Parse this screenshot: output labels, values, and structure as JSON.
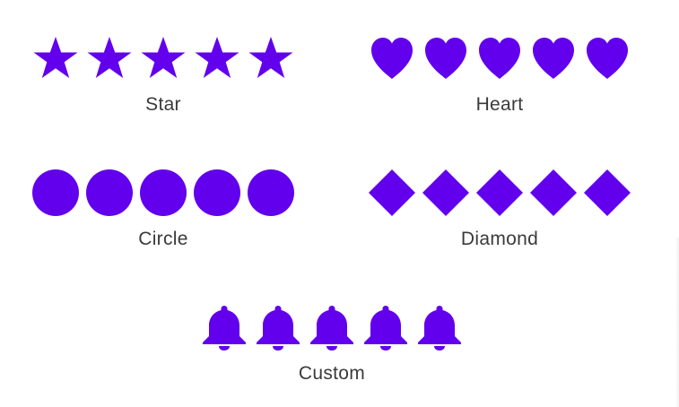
{
  "accent_color": "#6200ee",
  "label_color": "#3a3a3a",
  "ratings": [
    {
      "label": "Star",
      "icon": "star-icon",
      "count": 5
    },
    {
      "label": "Heart",
      "icon": "heart-icon",
      "count": 5
    },
    {
      "label": "Circle",
      "icon": "circle-icon",
      "count": 5
    },
    {
      "label": "Diamond",
      "icon": "diamond-icon",
      "count": 5
    },
    {
      "label": "Custom",
      "icon": "bell-icon",
      "count": 5
    }
  ]
}
